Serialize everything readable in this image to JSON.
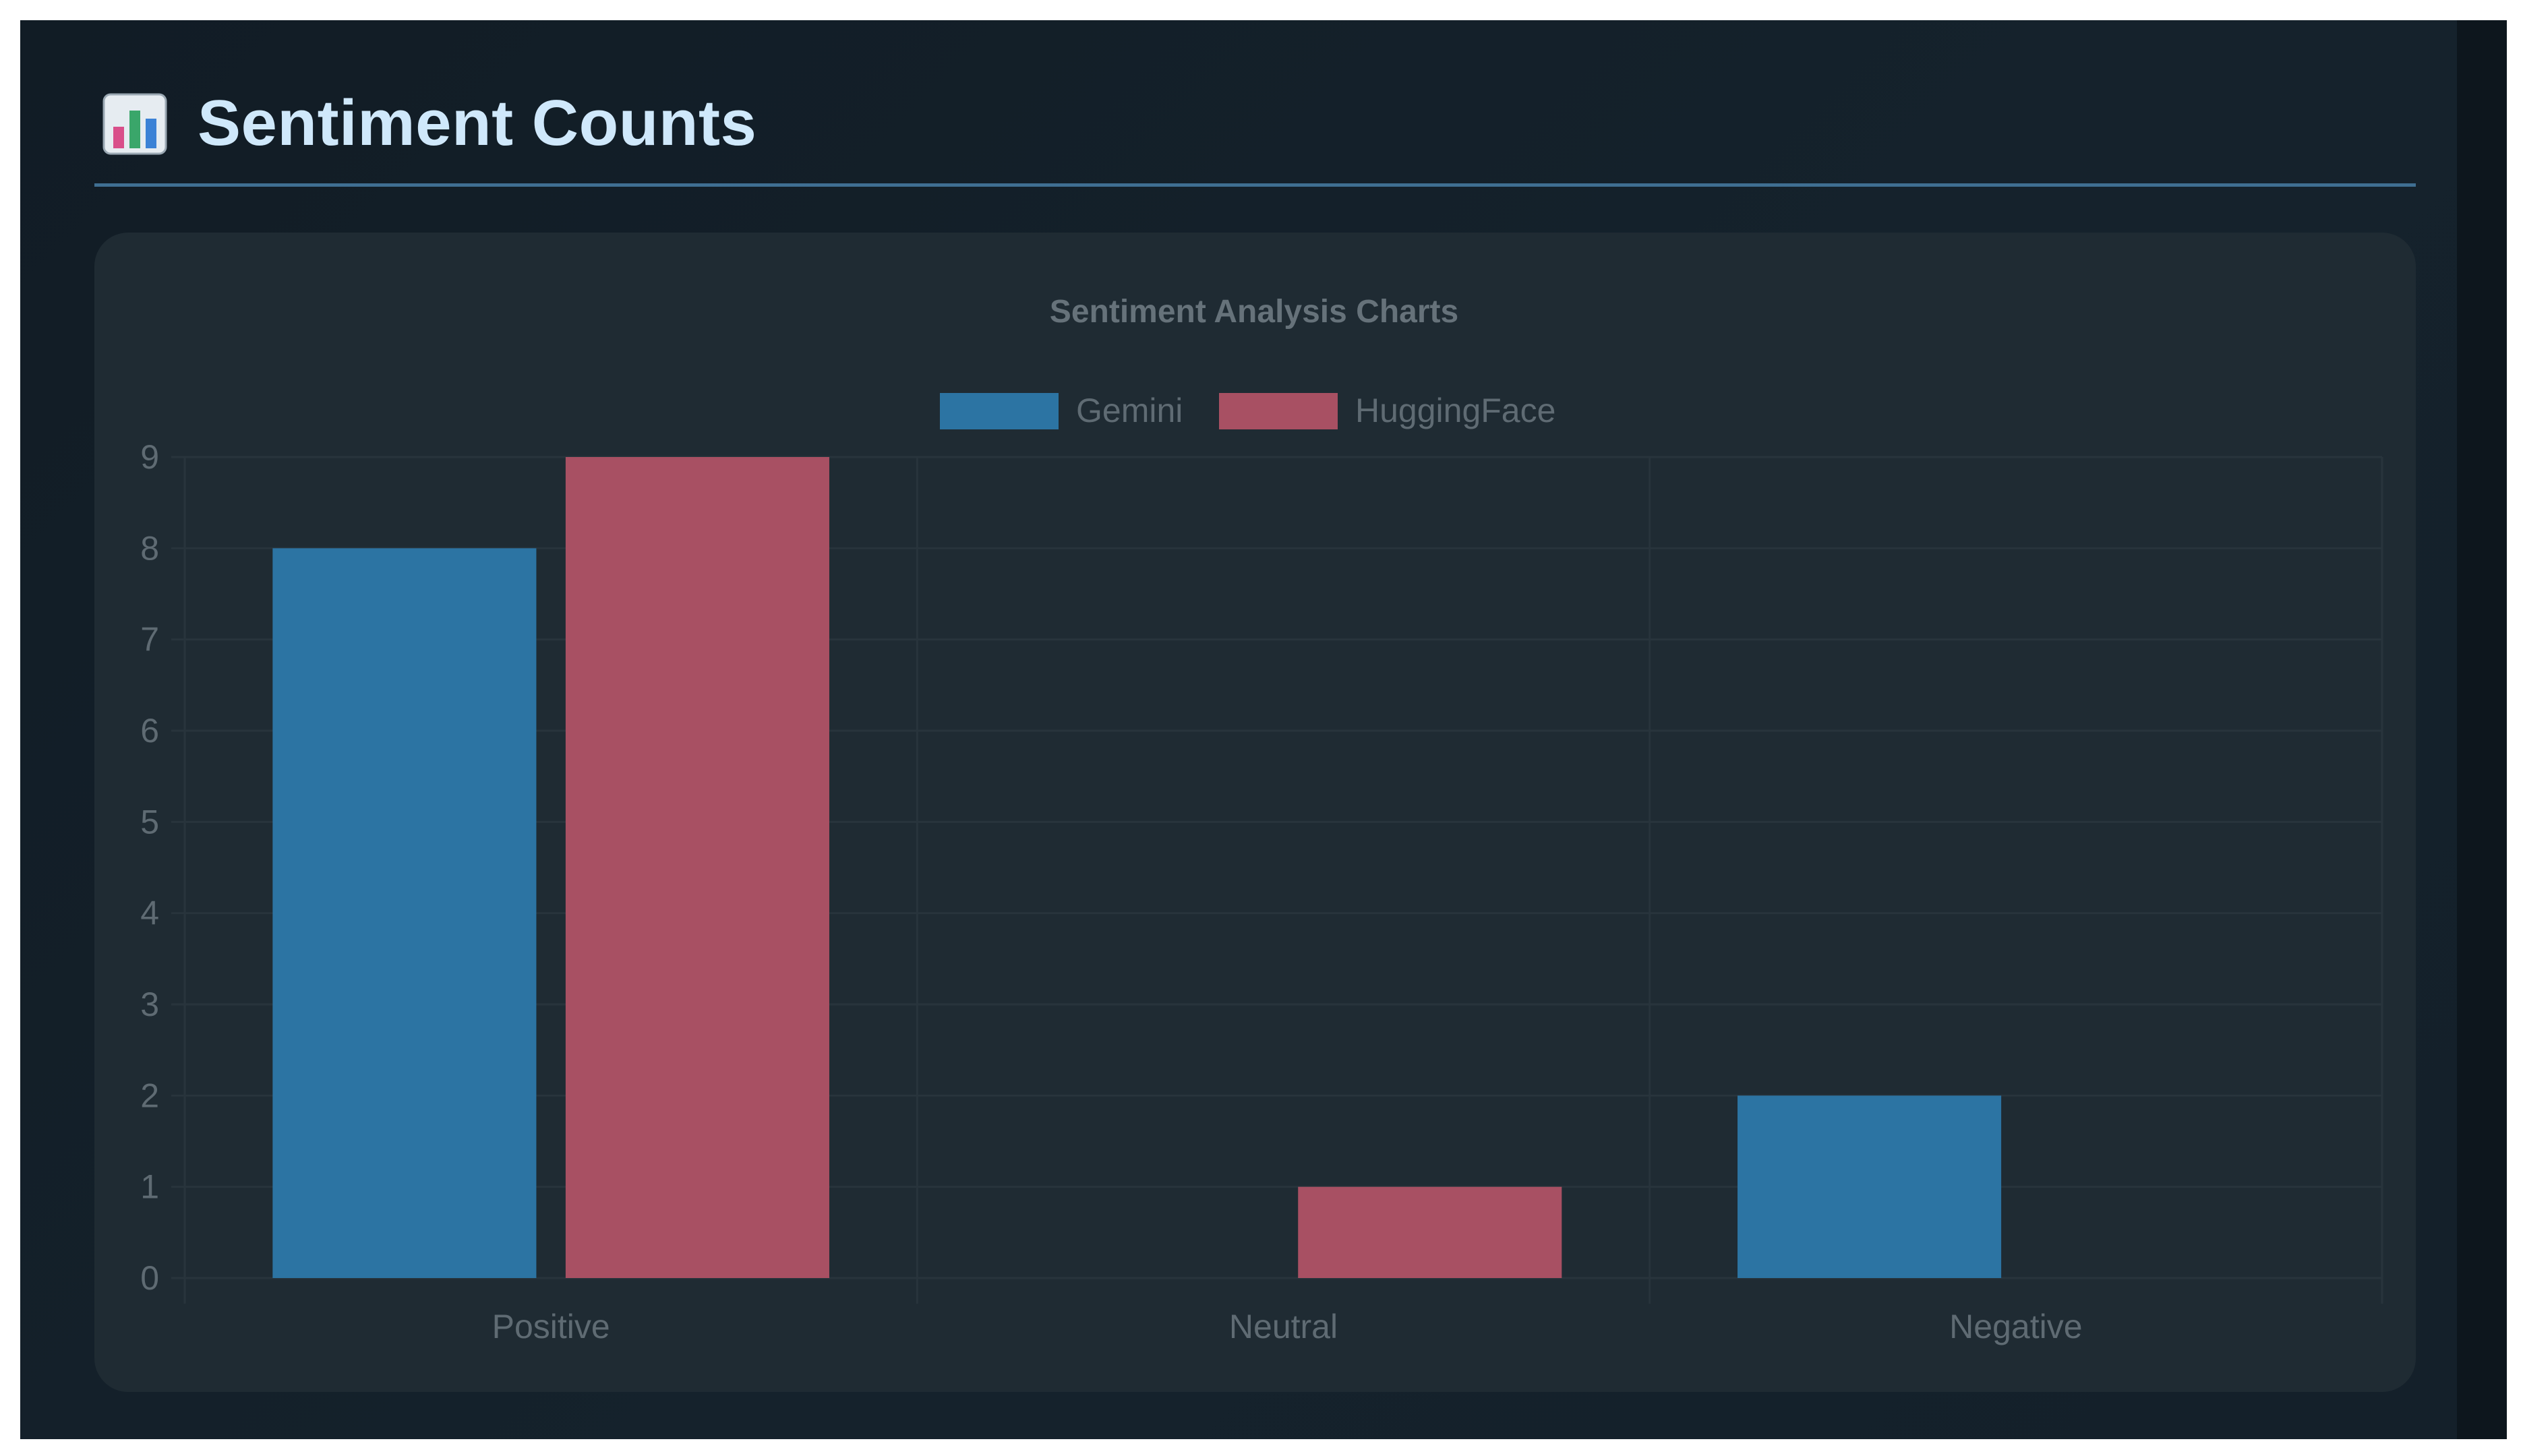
{
  "section": {
    "title": "Sentiment Counts",
    "icon": "bar-chart-icon"
  },
  "colors": {
    "gemini": "#2c74a3",
    "huggingface": "#a85063",
    "background": "#14202a",
    "card": "#1f2b33",
    "heading": "#cfe8fb",
    "divider": "#3f6f92",
    "muted_text": "#5f6b73",
    "grid": "#28343c"
  },
  "chart_data": {
    "type": "bar",
    "title": "Sentiment Analysis Charts",
    "categories": [
      "Positive",
      "Neutral",
      "Negative"
    ],
    "series": [
      {
        "name": "Gemini",
        "values": [
          8,
          0,
          2
        ]
      },
      {
        "name": "HuggingFace",
        "values": [
          9,
          1,
          0
        ]
      }
    ],
    "yticks": [
      0,
      1,
      2,
      3,
      4,
      5,
      6,
      7,
      8,
      9
    ],
    "ylim": [
      0,
      9
    ],
    "legend": "top",
    "grid": true
  }
}
